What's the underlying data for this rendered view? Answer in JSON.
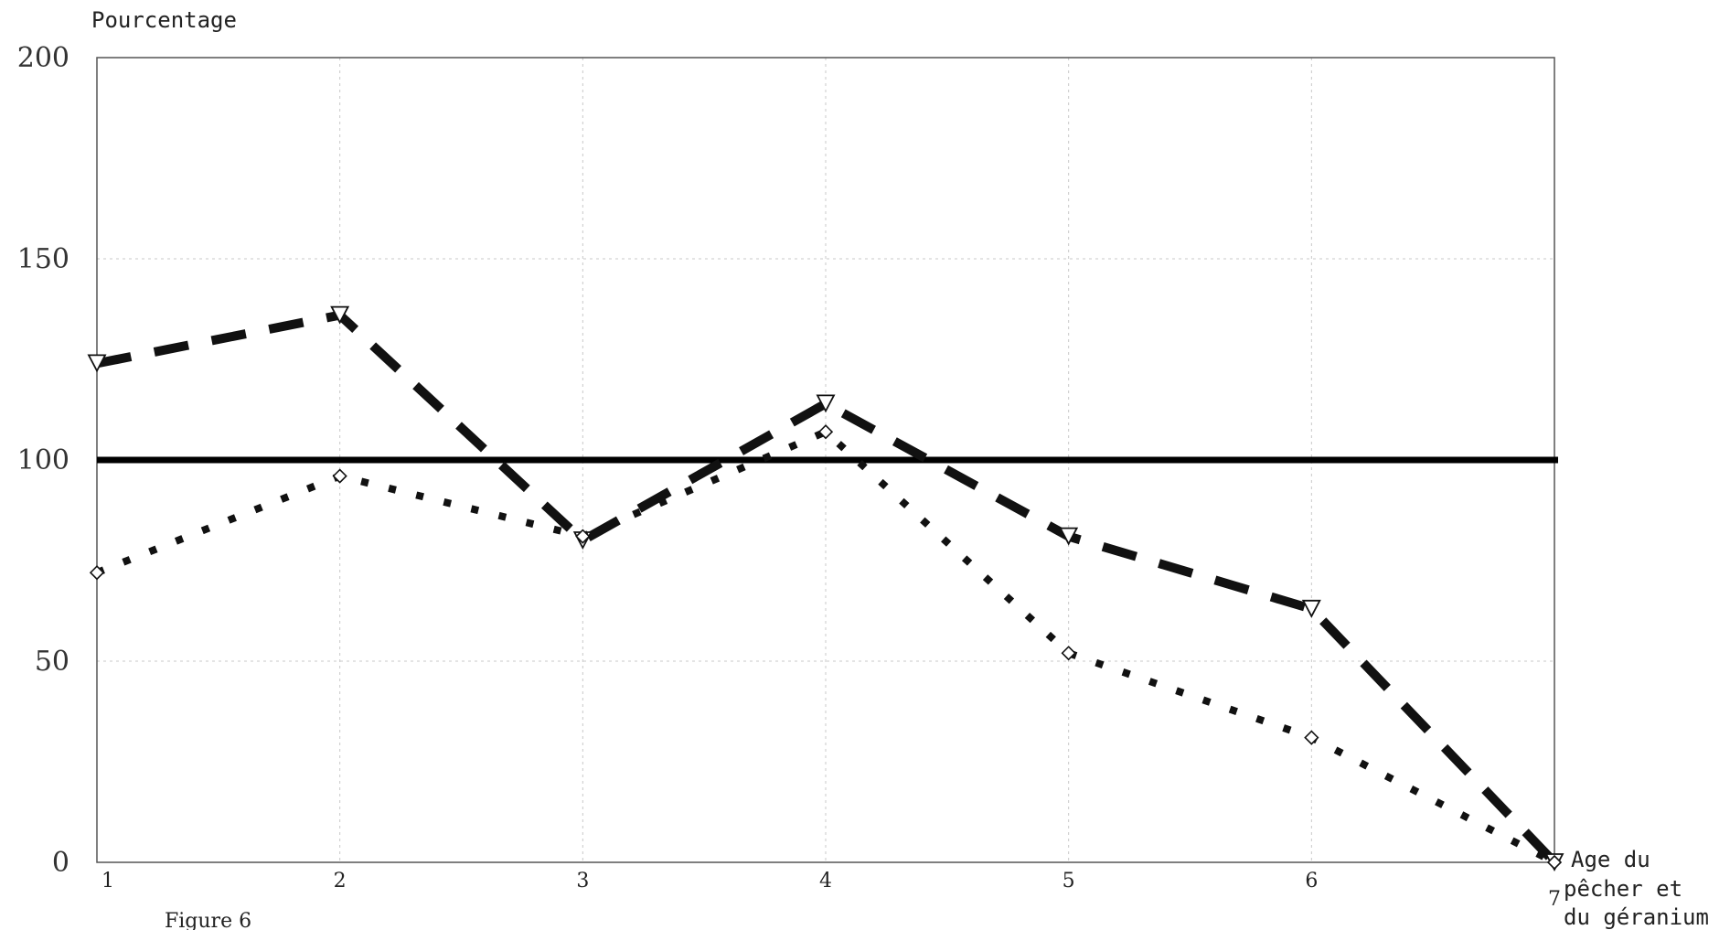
{
  "chart_data": {
    "type": "line",
    "ylabel": "Pourcentage",
    "xlabel_lines": [
      "Age du",
      "pêcher et",
      "du géranium"
    ],
    "caption": "Figure 6",
    "x": [
      1,
      2,
      3,
      4,
      5,
      6,
      7
    ],
    "xlim": [
      1,
      7
    ],
    "ylim": [
      0,
      200
    ],
    "y_ticks": [
      "0",
      "50",
      "100",
      "150",
      "200"
    ],
    "x_ticks": [
      "1",
      "2",
      "3",
      "4",
      "5",
      "6",
      "7"
    ],
    "reference_line": 100,
    "grid": true,
    "series": [
      {
        "style": "dashed",
        "marker": "triangle-down",
        "color": "#111111",
        "values": [
          124,
          136,
          80,
          114,
          81,
          63,
          0
        ]
      },
      {
        "style": "dotted",
        "marker": "diamond",
        "color": "#111111",
        "values": [
          72,
          96,
          81,
          107,
          52,
          31,
          0
        ]
      }
    ]
  }
}
